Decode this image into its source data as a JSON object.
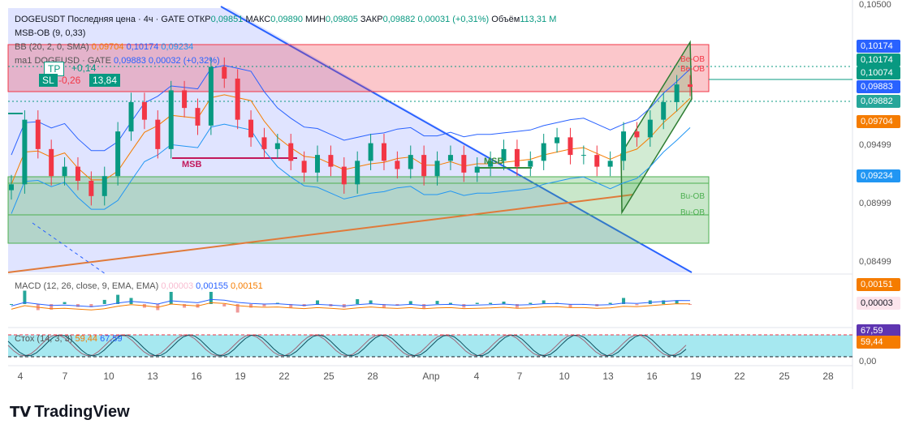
{
  "header": {
    "symbol": "DOGEUSDT",
    "price_type": "Последняя цена",
    "interval": "4ч",
    "exchange": "GATE",
    "open_label": "ОТКР",
    "open": "0,09851",
    "high_label": "МАКС",
    "high": "0,09890",
    "low_label": "МИН",
    "low": "0,09805",
    "close_label": "ЗАКР",
    "close": "0,09882",
    "change": "0,00031 (+0,31%)",
    "volume_label": "Объём",
    "volume": "113,31 M"
  },
  "indicators": {
    "msb_ob": "MSB-OB (9, 0,33)",
    "bb_label": "BB (20, 2, 0, SMA)",
    "bb_values": [
      "0,09704",
      "0,10174",
      "0,09234"
    ],
    "ma_label": "ma1 DOGEUSD · GATE",
    "ma_value": "0,09883",
    "ma_change": "0,00032 (+0,32%)",
    "macd_label": "MACD (12, 26, close, 9, EMA, EMA)",
    "macd_values": [
      "0,00003",
      "0,00155",
      "0,00151"
    ],
    "stoch_label": "Стох (14, 3, 3)",
    "stoch_values": [
      "59,44",
      "67,59"
    ]
  },
  "trade_box": {
    "tp": "TP",
    "tp_value": "+0,14",
    "sl": "SL",
    "sl_value": "-0,26",
    "ratio": "13,84"
  },
  "annotations": {
    "msb1": "MSB",
    "msb2": "MSB",
    "be_ob1": "Be-OB",
    "be_ob2": "Be-OB",
    "bu_ob1": "Bu-OB",
    "bu_ob2": "Bu-OB"
  },
  "price_tags": [
    {
      "value": "0,10174",
      "color": "#2962ff"
    },
    {
      "value": "0,10174",
      "color": "#089981"
    },
    {
      "value": "0,10074",
      "color": "#089981"
    },
    {
      "value": "0,09883",
      "color": "#2962ff"
    },
    {
      "value": "0,09882",
      "color": "#26a69a"
    },
    {
      "value": "0,09704",
      "color": "#f57c00"
    },
    {
      "value": "0,09234",
      "color": "#2196f3"
    },
    {
      "value": "0,00151",
      "color": "#f57c00"
    },
    {
      "value": "0,00003",
      "color": "#fce4ec"
    },
    {
      "value": "67,59",
      "color": "#5e35b1"
    },
    {
      "value": "59,44",
      "color": "#f57c00"
    }
  ],
  "colors": {
    "up": "#089981",
    "down": "#f23645",
    "trend_blue": "#2962ff",
    "trend_orange": "#e07a3a",
    "bear_zone": "#f23645",
    "bull_zone": "#4caf50",
    "stoch_band": "#00bcd4"
  },
  "brand": "TradingView",
  "chart_data": {
    "type": "candlestick",
    "y_axis_ticks": [
      "0,10500",
      "0,09499",
      "0,08999",
      "0,08499"
    ],
    "macd_axis_ticks": [],
    "stoch_axis_ticks": [
      "0,00"
    ],
    "x_ticks": [
      "4",
      "7",
      "10",
      "13",
      "16",
      "19",
      "22",
      "25",
      "28",
      "Апр",
      "4",
      "7",
      "10",
      "13",
      "16",
      "19",
      "22",
      "25",
      "28"
    ],
    "ylim": [
      0.083,
      0.1055
    ],
    "price_series": [
      0.0905,
      0.096,
      0.0935,
      0.0912,
      0.092,
      0.0908,
      0.0895,
      0.0912,
      0.095,
      0.0975,
      0.096,
      0.0935,
      0.0985,
      0.097,
      0.0955,
      0.1005,
      0.0995,
      0.096,
      0.0945,
      0.0935,
      0.094,
      0.0925,
      0.0915,
      0.093,
      0.092,
      0.0905,
      0.0925,
      0.094,
      0.0925,
      0.0918,
      0.093,
      0.0912,
      0.0925,
      0.093,
      0.0915,
      0.092,
      0.0925,
      0.0935,
      0.092,
      0.0925,
      0.094,
      0.0945,
      0.093,
      0.093,
      0.092,
      0.0925,
      0.095,
      0.0945,
      0.096,
      0.0975,
      0.099,
      0.0988
    ],
    "last_close": 0.09882,
    "bollinger": {
      "upper": 0.10174,
      "middle": 0.09704,
      "lower": 0.09234
    },
    "zones": [
      {
        "label": "Be-OB",
        "low": 0.1002,
        "high": 0.103
      },
      {
        "label": "Bu-OB",
        "low": 0.0888,
        "high": 0.0922
      }
    ]
  }
}
